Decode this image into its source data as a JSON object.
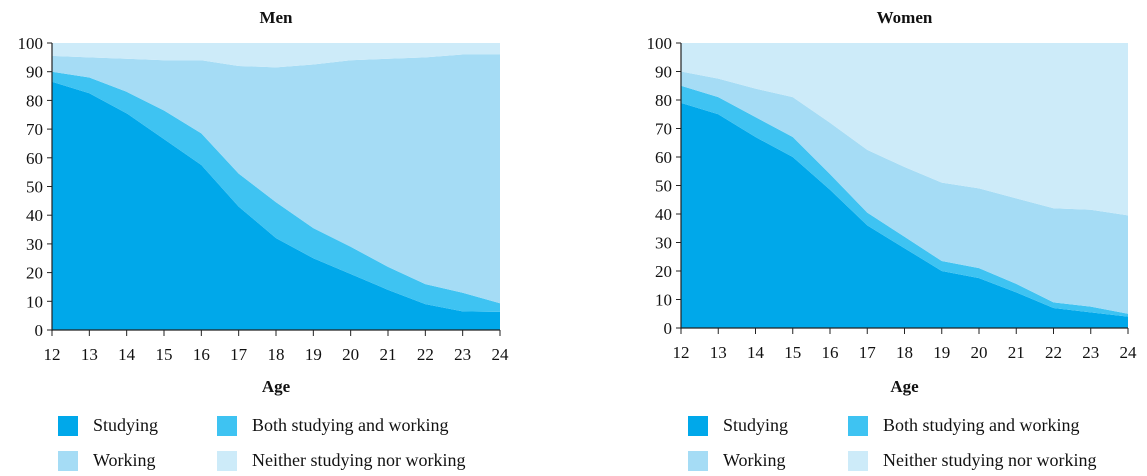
{
  "colors": {
    "studying": "#00a8ea",
    "both": "#3ec3f2",
    "working": "#a5dcf5",
    "neither": "#cdebf9",
    "axis": "#222222"
  },
  "legend": [
    {
      "key": "studying",
      "label": "Studying"
    },
    {
      "key": "both",
      "label": "Both studying and working"
    },
    {
      "key": "working",
      "label": "Working"
    },
    {
      "key": "neither",
      "label": "Neither studying nor working"
    }
  ],
  "chart_data": [
    {
      "type": "area",
      "stacked": true,
      "title": "Men",
      "xlabel": "Age",
      "ylabel": "",
      "ylim": [
        0,
        100
      ],
      "yticks": [
        0,
        10,
        20,
        30,
        40,
        50,
        60,
        70,
        80,
        90,
        100
      ],
      "x": [
        12,
        13,
        14,
        15,
        16,
        17,
        18,
        19,
        20,
        21,
        22,
        23,
        24
      ],
      "series": [
        {
          "name": "Studying",
          "key": "studying",
          "values": [
            86.5,
            82.5,
            75.5,
            66.5,
            57.5,
            43,
            32,
            25,
            19.5,
            14,
            9,
            6.5,
            6.3
          ]
        },
        {
          "name": "Both studying and working",
          "key": "both",
          "values": [
            3.5,
            5.5,
            7.5,
            10,
            11,
            11.5,
            12.5,
            10.5,
            9.5,
            8,
            7,
            6.5,
            3
          ]
        },
        {
          "name": "Working",
          "key": "working",
          "values": [
            5.5,
            7,
            11.5,
            17.5,
            25.5,
            37.5,
            47,
            57,
            65,
            72.5,
            79,
            83,
            86.7
          ]
        },
        {
          "name": "Neither studying nor working",
          "key": "neither",
          "values": [
            4.5,
            5,
            5.5,
            6,
            6,
            8,
            8.5,
            7.5,
            6,
            5.5,
            5,
            4,
            4
          ]
        }
      ]
    },
    {
      "type": "area",
      "stacked": true,
      "title": "Women",
      "xlabel": "Age",
      "ylabel": "",
      "ylim": [
        0,
        100
      ],
      "yticks": [
        0,
        10,
        20,
        30,
        40,
        50,
        60,
        70,
        80,
        90,
        100
      ],
      "x": [
        12,
        13,
        14,
        15,
        16,
        17,
        18,
        19,
        20,
        21,
        22,
        23,
        24
      ],
      "series": [
        {
          "name": "Studying",
          "key": "studying",
          "values": [
            79,
            75,
            67,
            60,
            48.5,
            36,
            28,
            20,
            17.5,
            12.5,
            7,
            5.5,
            4
          ]
        },
        {
          "name": "Both studying and working",
          "key": "both",
          "values": [
            6,
            6,
            7,
            7,
            5.5,
            4.5,
            4,
            3.5,
            3.5,
            3,
            2,
            2,
            1
          ]
        },
        {
          "name": "Working",
          "key": "working",
          "values": [
            5,
            6.5,
            10,
            14,
            18,
            22,
            24.5,
            27.5,
            28,
            30,
            33,
            34,
            34.5
          ]
        },
        {
          "name": "Neither studying nor working",
          "key": "neither",
          "values": [
            10,
            12.5,
            16,
            19,
            28,
            37.5,
            43.5,
            49,
            51,
            54.5,
            58,
            58.5,
            60.5
          ]
        }
      ]
    }
  ]
}
